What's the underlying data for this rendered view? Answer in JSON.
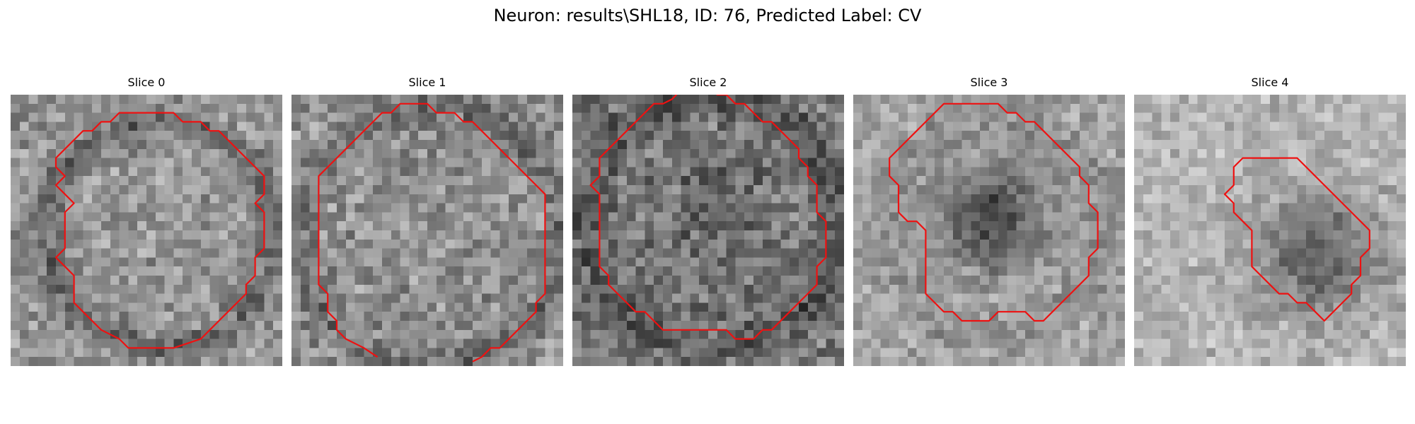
{
  "figure": {
    "title": "Neuron: results\\SHL18, ID: 76, Predicted Label: CV"
  },
  "colors": {
    "contour": "#ee1111",
    "colormap": "gray"
  },
  "panels": [
    {
      "title": "Slice 0",
      "contour_shape": "blob",
      "dark_core": false,
      "open_contour": false
    },
    {
      "title": "Slice 1",
      "contour_shape": "large-ring",
      "dark_core": false,
      "open_contour": true
    },
    {
      "title": "Slice 2",
      "contour_shape": "large-ring",
      "dark_core": false,
      "open_contour": true
    },
    {
      "title": "Slice 3",
      "contour_shape": "ring",
      "dark_core": true,
      "open_contour": false
    },
    {
      "title": "Slice 4",
      "contour_shape": "small-blob",
      "dark_core": true,
      "open_contour": false
    }
  ]
}
